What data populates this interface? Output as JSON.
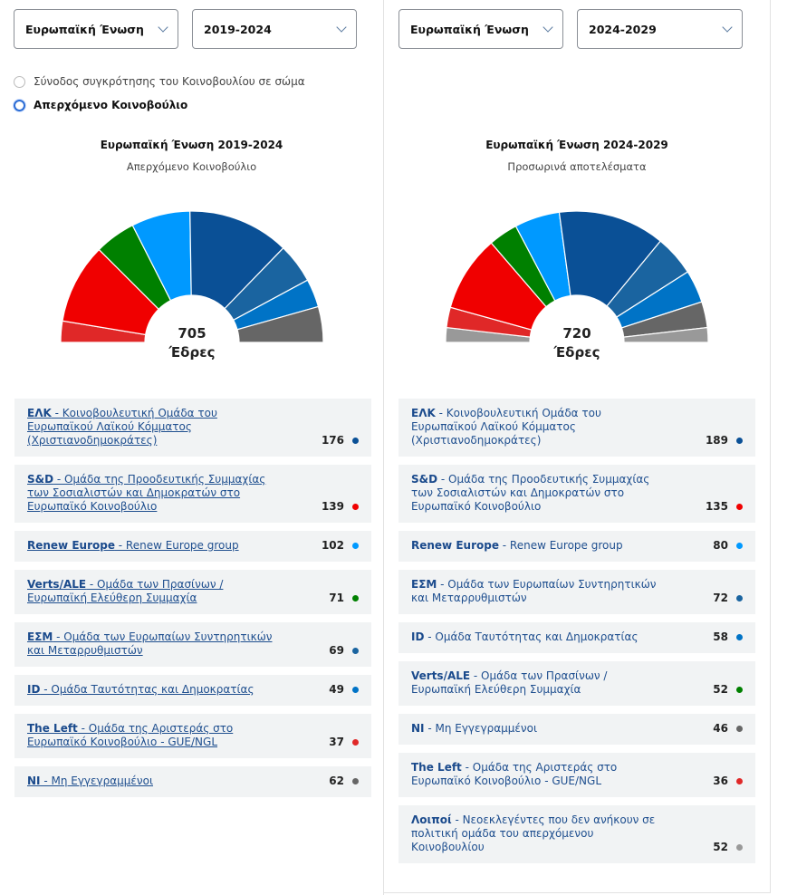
{
  "left": {
    "region": "Ευρωπαϊκή Ένωση",
    "term": "2019-2024",
    "radios": [
      {
        "label": "Σύνοδος συγκρότησης του Κοινοβουλίου σε σώμα",
        "selected": false
      },
      {
        "label": "Απερχόμενο Κοινοβούλιο",
        "selected": true
      }
    ],
    "title": "Ευρωπαϊκή Ένωση 2019-2024",
    "subtitle": "Απερχόμενο Κοινοβούλιο",
    "total": "705",
    "seats_label": "Έδρες",
    "groups": [
      {
        "key": "EPP",
        "abbr": "ΕΛΚ",
        "name": " - Κοινοβουλευτική Ομάδα του Ευρωπαϊκού Λαϊκού Κόμματος (Χριστιανοδημοκράτες)",
        "seats": 176,
        "color": "#0a5096"
      },
      {
        "key": "SD",
        "abbr": "S&D",
        "name": " - Ομάδα της Προοδευτικής Συμμαχίας των Σοσιαλιστών και Δημοκρατών στο Ευρωπαϊκό Κοινοβούλιο",
        "seats": 139,
        "color": "#f00000"
      },
      {
        "key": "RE",
        "abbr": "Renew Europe",
        "name": " - Renew Europe group",
        "seats": 102,
        "color": "#0099ff"
      },
      {
        "key": "GR",
        "abbr": "Verts/ALE",
        "name": " - Ομάδα των Πρασίνων / Ευρωπαϊκή Ελεύθερη Συμμαχία",
        "seats": 71,
        "color": "#008000"
      },
      {
        "key": "ECR",
        "abbr": "ΕΣΜ",
        "name": " - Ομάδα των Ευρωπαίων Συντηρητικών και Μεταρρυθμιστών",
        "seats": 69,
        "color": "#1a64a0"
      },
      {
        "key": "ID",
        "abbr": "ID",
        "name": " - Ομάδα Ταυτότητας και Δημοκρατίας",
        "seats": 49,
        "color": "#0073c6"
      },
      {
        "key": "LEFT",
        "abbr": "The Left",
        "name": " - Ομάδα της Αριστεράς στο Ευρωπαϊκό Κοινοβούλιο - GUE/NGL",
        "seats": 37,
        "color": "#e02828"
      },
      {
        "key": "NI",
        "abbr": "NI",
        "name": " - Μη Εγγεγραμμένοι",
        "seats": 62,
        "color": "#666666"
      }
    ]
  },
  "right": {
    "region": "Ευρωπαϊκή Ένωση",
    "term": "2024-2029",
    "title": "Ευρωπαϊκή Ένωση 2024-2029",
    "subtitle": "Προσωρινά αποτελέσματα",
    "total": "720",
    "seats_label": "Έδρες",
    "groups": [
      {
        "key": "EPP",
        "abbr": "ΕΛΚ",
        "name": " - Κοινοβουλευτική Ομάδα του Ευρωπαϊκού Λαϊκού Κόμματος (Χριστιανοδημοκράτες)",
        "seats": 189,
        "color": "#0a5096"
      },
      {
        "key": "SD",
        "abbr": "S&D",
        "name": " - Ομάδα της Προοδευτικής Συμμαχίας των Σοσιαλιστών και Δημοκρατών στο Ευρωπαϊκό Κοινοβούλιο",
        "seats": 135,
        "color": "#f00000"
      },
      {
        "key": "RE",
        "abbr": "Renew Europe",
        "name": " - Renew Europe group",
        "seats": 80,
        "color": "#0099ff"
      },
      {
        "key": "ECR",
        "abbr": "ΕΣΜ",
        "name": " - Ομάδα των Ευρωπαίων Συντηρητικών και Μεταρρυθμιστών",
        "seats": 72,
        "color": "#1a64a0"
      },
      {
        "key": "ID",
        "abbr": "ID",
        "name": " - Ομάδα Ταυτότητας και Δημοκρατίας",
        "seats": 58,
        "color": "#0073c6"
      },
      {
        "key": "GR",
        "abbr": "Verts/ALE",
        "name": " - Ομάδα των Πρασίνων / Ευρωπαϊκή Ελεύθερη Συμμαχία",
        "seats": 52,
        "color": "#008000"
      },
      {
        "key": "NI",
        "abbr": "NI",
        "name": " - Μη Εγγεγραμμένοι",
        "seats": 46,
        "color": "#666666"
      },
      {
        "key": "LEFT",
        "abbr": "The Left",
        "name": " - Ομάδα της Αριστεράς στο Ευρωπαϊκό Κοινοβούλιο - GUE/NGL",
        "seats": 36,
        "color": "#e02828"
      },
      {
        "key": "OTH",
        "abbr": "Λοιποί",
        "name": " - Νεοεκλεγέντες που δεν ανήκουν σε πολιτική ομάδα του απερχόμενου Κοινοβουλίου",
        "seats": 52,
        "color": "#999999"
      }
    ]
  }
}
